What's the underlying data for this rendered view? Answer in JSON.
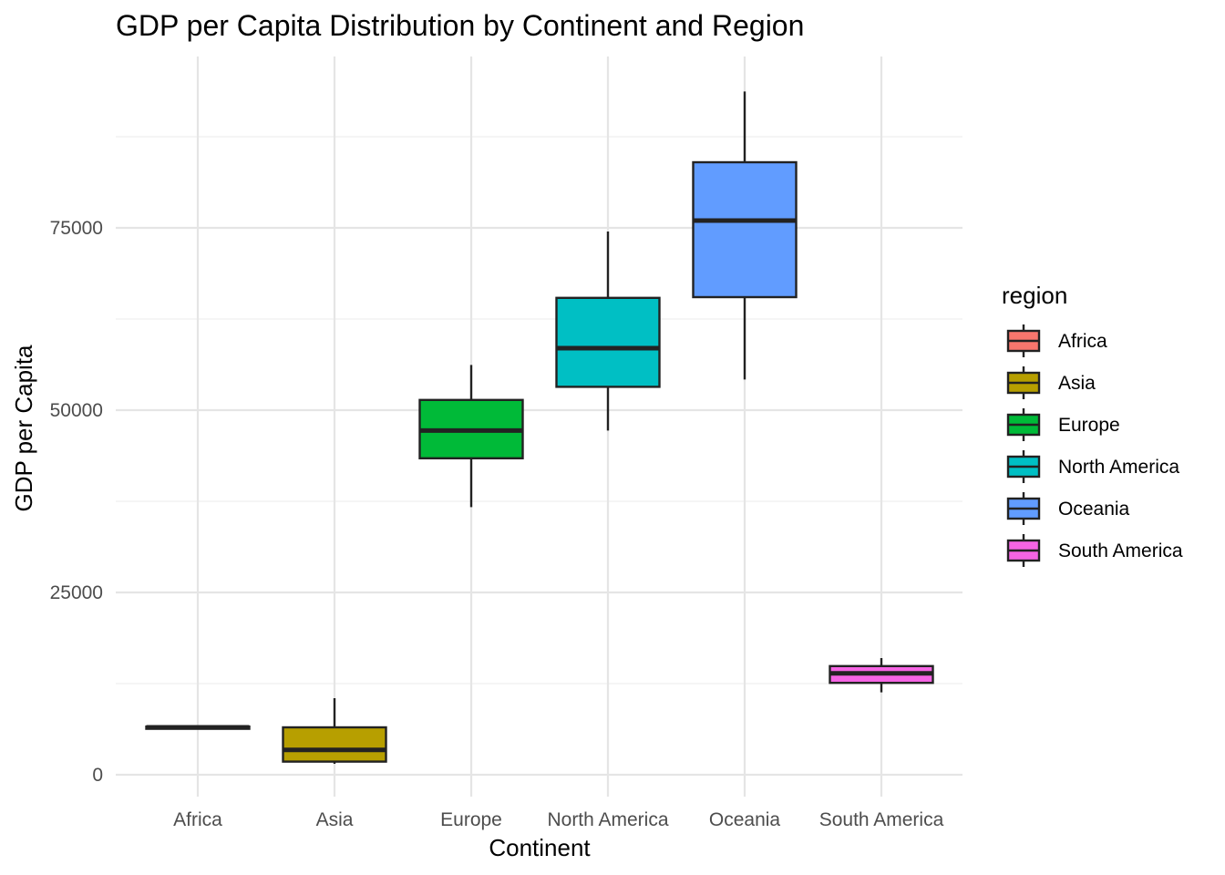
{
  "chart_data": {
    "type": "boxplot",
    "title": "GDP per Capita Distribution by Continent and Region",
    "xlabel": "Continent",
    "ylabel": "GDP per Capita",
    "categories": [
      "Africa",
      "Asia",
      "Europe",
      "North America",
      "Oceania",
      "South America"
    ],
    "ylim": [
      -3000,
      98500
    ],
    "y_ticks": [
      0,
      25000,
      50000,
      75000
    ],
    "y_tick_labels": [
      "0",
      "25000",
      "50000",
      "75000"
    ],
    "grid": true,
    "legend": {
      "title": "region",
      "placement": "right",
      "entries": [
        "Africa",
        "Asia",
        "Europe",
        "North America",
        "Oceania",
        "South America"
      ]
    },
    "series": [
      {
        "name": "Africa",
        "color": "#F8766D",
        "min": 6300,
        "q1": 6300,
        "median": 6500,
        "q3": 6600,
        "max": 6700
      },
      {
        "name": "Asia",
        "color": "#B79F00",
        "min": 1500,
        "q1": 1800,
        "median": 3400,
        "q3": 6500,
        "max": 10500
      },
      {
        "name": "Europe",
        "color": "#00BA38",
        "min": 36700,
        "q1": 43400,
        "median": 47200,
        "q3": 51400,
        "max": 56200
      },
      {
        "name": "North America",
        "color": "#00BFC4",
        "min": 47200,
        "q1": 53200,
        "median": 58500,
        "q3": 65400,
        "max": 74500
      },
      {
        "name": "Oceania",
        "color": "#619CFF",
        "min": 54200,
        "q1": 65500,
        "median": 76000,
        "q3": 84000,
        "max": 93700
      },
      {
        "name": "South America",
        "color": "#F564E3",
        "min": 11300,
        "q1": 12600,
        "median": 13900,
        "q3": 14900,
        "max": 16000
      }
    ]
  }
}
